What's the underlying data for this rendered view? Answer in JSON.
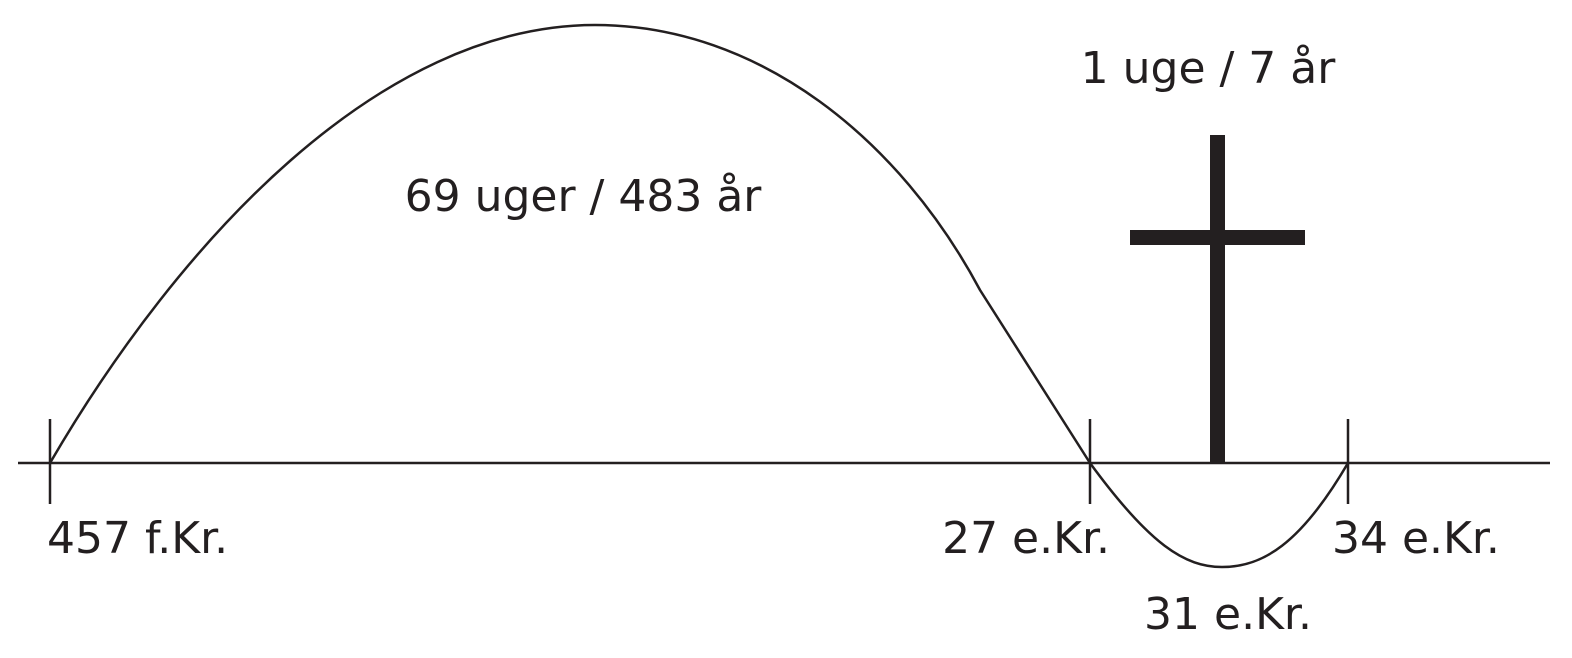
{
  "timeline": {
    "labels": {
      "start": "457 f.Kr.",
      "mid": "27 e.Kr.",
      "end": "34 e.Kr.",
      "cross": "31 e.Kr."
    },
    "spans": {
      "long": "69 uger / 483 år",
      "short": "1 uge / 7 år"
    },
    "colors": {
      "ink": "#231f20",
      "background": "#ffffff"
    }
  }
}
